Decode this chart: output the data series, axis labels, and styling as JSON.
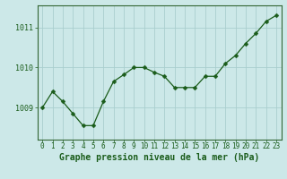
{
  "x": [
    0,
    1,
    2,
    3,
    4,
    5,
    6,
    7,
    8,
    9,
    10,
    11,
    12,
    13,
    14,
    15,
    16,
    17,
    18,
    19,
    20,
    21,
    22,
    23
  ],
  "y": [
    1009.0,
    1009.4,
    1009.15,
    1008.85,
    1008.55,
    1008.55,
    1009.15,
    1009.65,
    1009.82,
    1010.0,
    1010.0,
    1009.88,
    1009.78,
    1009.5,
    1009.5,
    1009.5,
    1009.78,
    1009.78,
    1010.1,
    1010.3,
    1010.6,
    1010.85,
    1011.15,
    1011.3
  ],
  "line_color": "#1a5c1a",
  "marker": "D",
  "marker_size": 2.5,
  "bg_color": "#cce8e8",
  "grid_color_major": "#aacece",
  "grid_color_minor": "#bbdddd",
  "axis_color": "#336633",
  "label_color": "#1a5c1a",
  "xlabel": "Graphe pression niveau de la mer (hPa)",
  "yticks": [
    1009,
    1010,
    1011
  ],
  "ylim": [
    1008.2,
    1011.55
  ],
  "xlim": [
    -0.5,
    23.5
  ],
  "xtick_labels": [
    "0",
    "1",
    "2",
    "3",
    "4",
    "5",
    "6",
    "7",
    "8",
    "9",
    "10",
    "11",
    "12",
    "13",
    "14",
    "15",
    "16",
    "17",
    "18",
    "19",
    "20",
    "21",
    "22",
    "23"
  ],
  "xlabel_fontsize": 7,
  "ytick_fontsize": 6,
  "xtick_fontsize": 5.5
}
